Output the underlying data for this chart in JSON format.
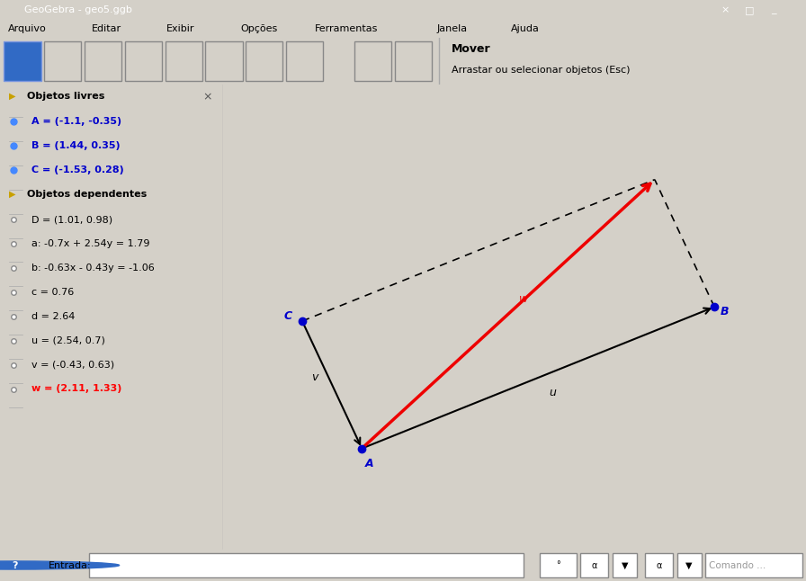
{
  "title_bar_text": "GeoGebra - geo5.ggb",
  "menu_items": [
    "Arquivo",
    "Editar",
    "Exibir",
    "Opções",
    "Ferramentas",
    "Janela",
    "Ajuda"
  ],
  "toolbar_right_title": "Mover",
  "toolbar_right_sub": "Arrastar ou selecionar objetos (Esc)",
  "title_bar_color": "#0a246a",
  "title_bar_text_color": "#ffffff",
  "menu_bar_color": "#d4d0c8",
  "toolbar_color": "#d4d0c8",
  "panel_bg": "#d4d0c8",
  "canvas_bg": "#ffffff",
  "sidebar_bg": "#ffffff",
  "sidebar_border": "#aaaaaa",
  "bottom_bar_color": "#d4d0c8",
  "points": {
    "A": [
      -1.1,
      -0.35
    ],
    "B": [
      1.44,
      0.35
    ],
    "C": [
      -1.53,
      0.28
    ],
    "D": [
      1.01,
      0.98
    ]
  },
  "point_color": "#0000cc",
  "arrow_color": "#000000",
  "red_arrow_color": "#ee0000",
  "dashed_color": "#000000",
  "label_color_free": "#0000cc",
  "label_color_dep": "#000000",
  "label_color_w": "#ff0000",
  "sidebar_items_free": [
    "A = (-1.1, -0.35)",
    "B = (1.44, 0.35)",
    "C = (-1.53, 0.28)"
  ],
  "sidebar_items_dep": [
    "D = (1.01, 0.98)",
    "a: -0.7x + 2.54y = 1.79",
    "b: -0.63x - 0.43y = -1.06",
    "c = 0.76",
    "d = 2.64",
    "u = (2.54, 0.7)",
    "v = (-0.43, 0.63)",
    "w = (2.11, 1.33)"
  ],
  "xlim": [
    -2.1,
    2.1
  ],
  "ylim": [
    -0.85,
    1.45
  ]
}
